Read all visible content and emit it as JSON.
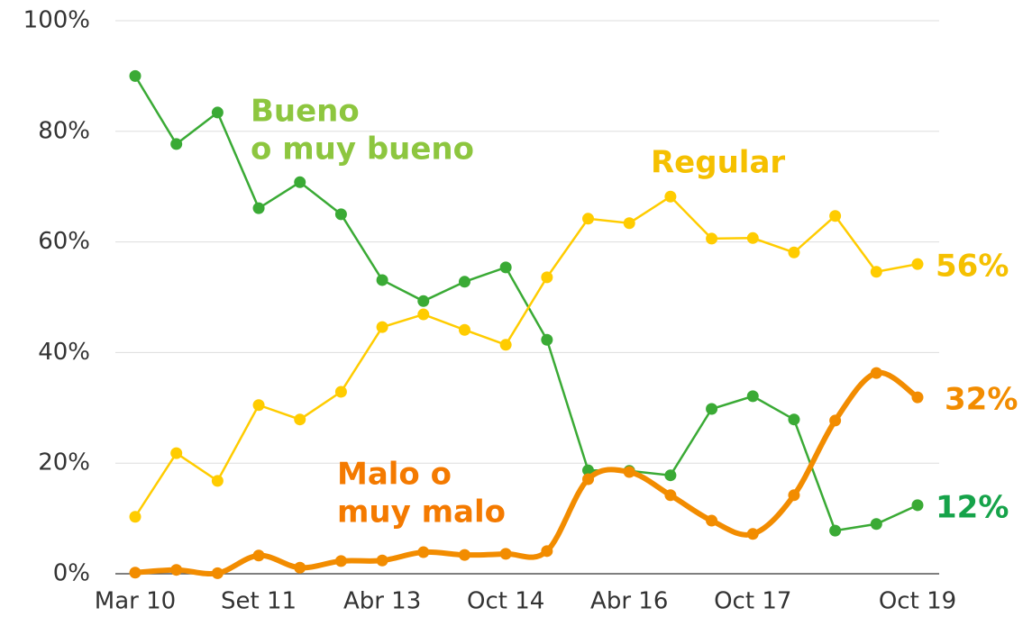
{
  "chart_data": {
    "type": "line",
    "categories": [
      "Mar 10",
      null,
      null,
      "Set 11",
      null,
      null,
      "Abr 13",
      null,
      null,
      "Oct 14",
      null,
      null,
      "Abr 16",
      null,
      null,
      "Oct 17",
      null,
      null,
      null,
      "Oct 19"
    ],
    "ylim": [
      0,
      100
    ],
    "yticks": [
      {
        "value": 0,
        "label": "0%"
      },
      {
        "value": 20,
        "label": "20%"
      },
      {
        "value": 40,
        "label": "40%"
      },
      {
        "value": 60,
        "label": "60%"
      },
      {
        "value": 80,
        "label": "80%"
      },
      {
        "value": 100,
        "label": "100%"
      }
    ],
    "grid": true,
    "series": [
      {
        "name": [
          "Bueno",
          "o muy bueno"
        ],
        "color": "#3aaa35",
        "label_color": "#8dc63f",
        "smooth": false,
        "values": [
          90,
          77.7,
          83.4,
          66.1,
          70.8,
          65,
          53.1,
          49.3,
          52.8,
          55.4,
          42.3,
          18.7,
          18.6,
          17.8,
          29.8,
          32.1,
          27.9,
          7.8,
          9,
          12.4
        ],
        "value_labels": [
          null,
          null,
          null,
          null,
          null,
          null,
          null,
          null,
          null,
          null,
          null,
          null,
          null,
          null,
          null,
          null,
          null,
          null,
          null,
          "12%"
        ],
        "value_label_color": "#16a34a"
      },
      {
        "name": [
          "Regular"
        ],
        "color": "#ffcc00",
        "label_color": "#f5c000",
        "smooth": false,
        "values": [
          10.3,
          21.8,
          16.8,
          30.5,
          27.9,
          32.9,
          44.6,
          46.9,
          44.1,
          41.4,
          53.6,
          64.2,
          63.4,
          68.2,
          60.6,
          60.7,
          58.1,
          64.7,
          54.6,
          56
        ],
        "value_labels": [
          null,
          null,
          null,
          null,
          null,
          null,
          null,
          null,
          null,
          null,
          null,
          null,
          null,
          null,
          null,
          null,
          null,
          null,
          null,
          "56%"
        ],
        "value_label_color": "#f5c000"
      },
      {
        "name": [
          "Malo o",
          "muy malo"
        ],
        "color": "#f28c00",
        "label_color": "#f47a00",
        "smooth": true,
        "values": [
          0.2,
          0.7,
          0.1,
          3.3,
          1.1,
          2.3,
          2.4,
          3.9,
          3.4,
          3.6,
          4.1,
          17.1,
          18.4,
          14.2,
          9.6,
          7.2,
          14.2,
          27.7,
          36.3,
          31.9
        ],
        "value_labels": [
          null,
          null,
          null,
          null,
          null,
          null,
          null,
          null,
          null,
          null,
          null,
          null,
          null,
          null,
          null,
          null,
          null,
          null,
          null,
          "32%"
        ],
        "value_label_color": "#f28c00"
      }
    ]
  }
}
